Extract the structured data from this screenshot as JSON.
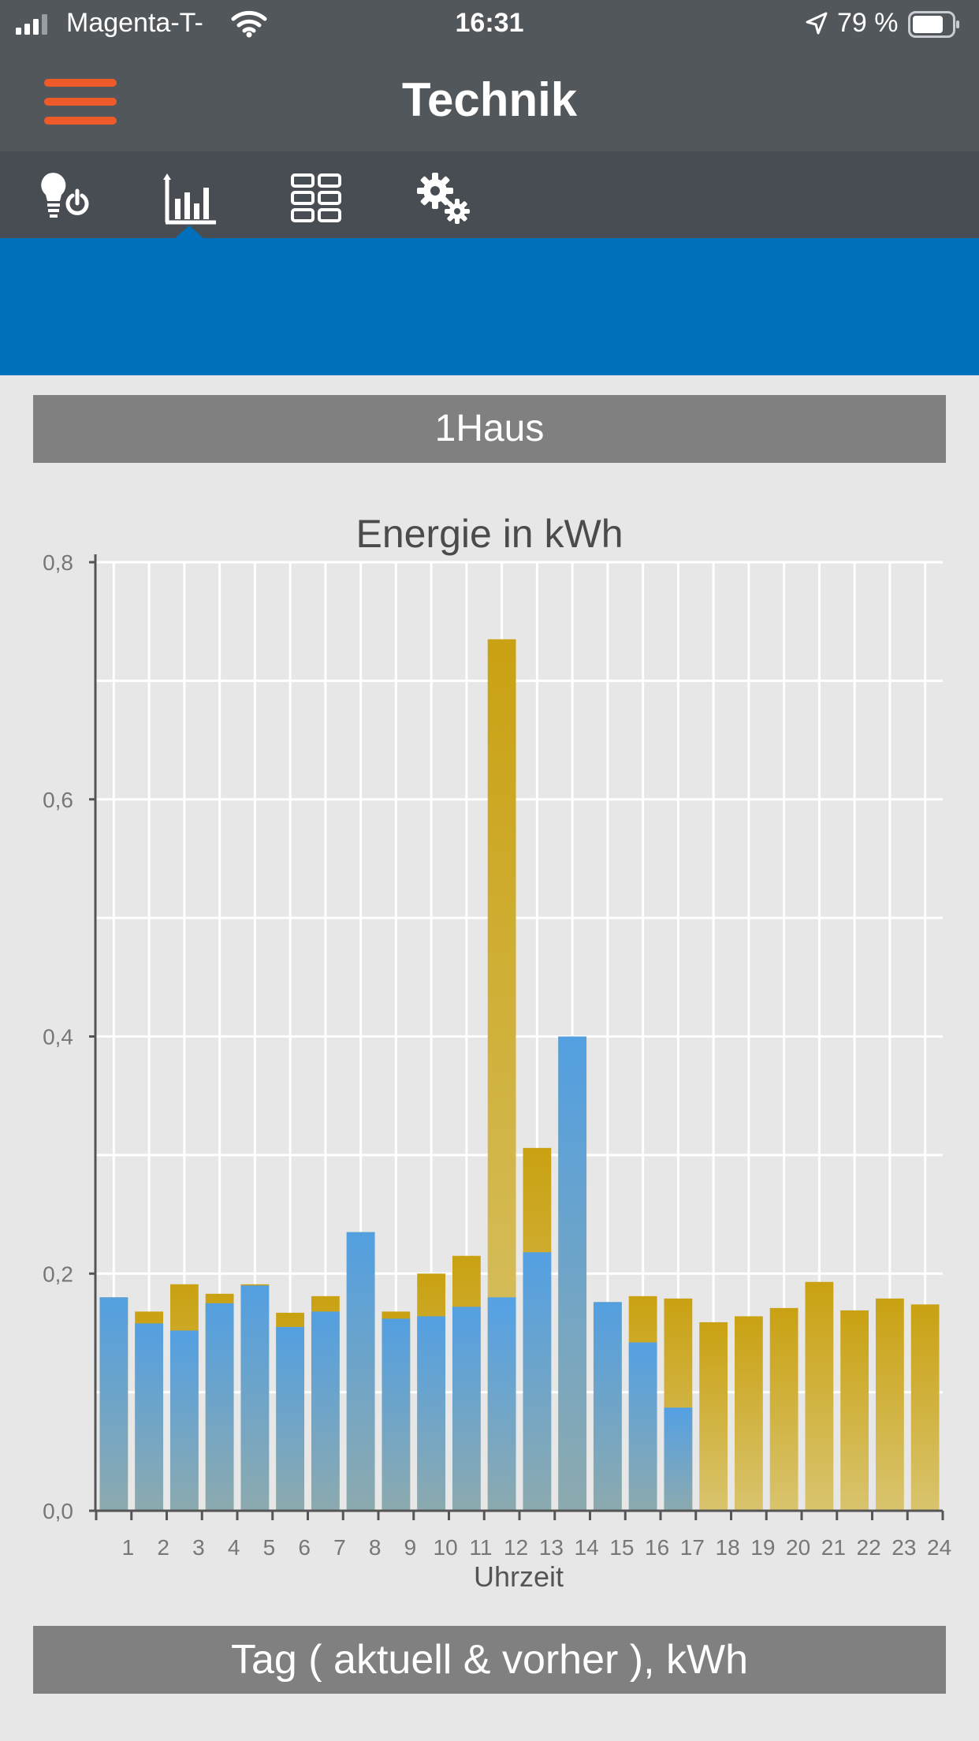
{
  "status_bar": {
    "carrier": "Magenta-T-",
    "time": "16:31",
    "battery_percent": "79 %"
  },
  "header": {
    "title": "Technik"
  },
  "tabs": [
    {
      "icon": "bulb-power-icon",
      "active": false
    },
    {
      "icon": "bar-chart-icon",
      "active": true
    },
    {
      "icon": "grid-icon",
      "active": false
    },
    {
      "icon": "gears-icon",
      "active": false
    }
  ],
  "location_button": {
    "label": "1Haus"
  },
  "period_button": {
    "label": "Tag ( aktuell & vorher ), kWh"
  },
  "colors": {
    "header_bg": "#52575c",
    "accent_blue": "#0070bd",
    "menu_orange": "#ef5a2a",
    "current_series": "#4a9ff0",
    "previous_series": "#c9a112"
  },
  "chart_data": {
    "type": "bar",
    "title": "Energie in kWh",
    "xlabel": "Uhrzeit",
    "ylabel": "",
    "ylim": [
      0,
      0.8
    ],
    "yticks": [
      "0,0",
      "0,2",
      "0,4",
      "0,6",
      "0,8"
    ],
    "grid": true,
    "categories": [
      "1",
      "2",
      "3",
      "4",
      "5",
      "6",
      "7",
      "8",
      "9",
      "10",
      "11",
      "12",
      "13",
      "14",
      "15",
      "16",
      "17",
      "18",
      "19",
      "20",
      "21",
      "22",
      "23",
      "24"
    ],
    "series": [
      {
        "values": [
          0.18,
          0.158,
          0.152,
          0.175,
          0.19,
          0.155,
          0.168,
          0.235,
          0.162,
          0.164,
          0.172,
          0.18,
          0.218,
          0.4,
          0.176,
          0.142,
          0.087,
          null,
          null,
          null,
          null,
          null,
          null,
          null
        ]
      },
      {
        "values": [
          0.18,
          0.168,
          0.191,
          0.183,
          0.191,
          0.167,
          0.181,
          0.235,
          0.168,
          0.2,
          0.215,
          0.735,
          0.306,
          0.4,
          0.176,
          0.181,
          0.179,
          0.159,
          0.164,
          0.171,
          0.193,
          0.169,
          0.179,
          0.174
        ]
      }
    ]
  }
}
